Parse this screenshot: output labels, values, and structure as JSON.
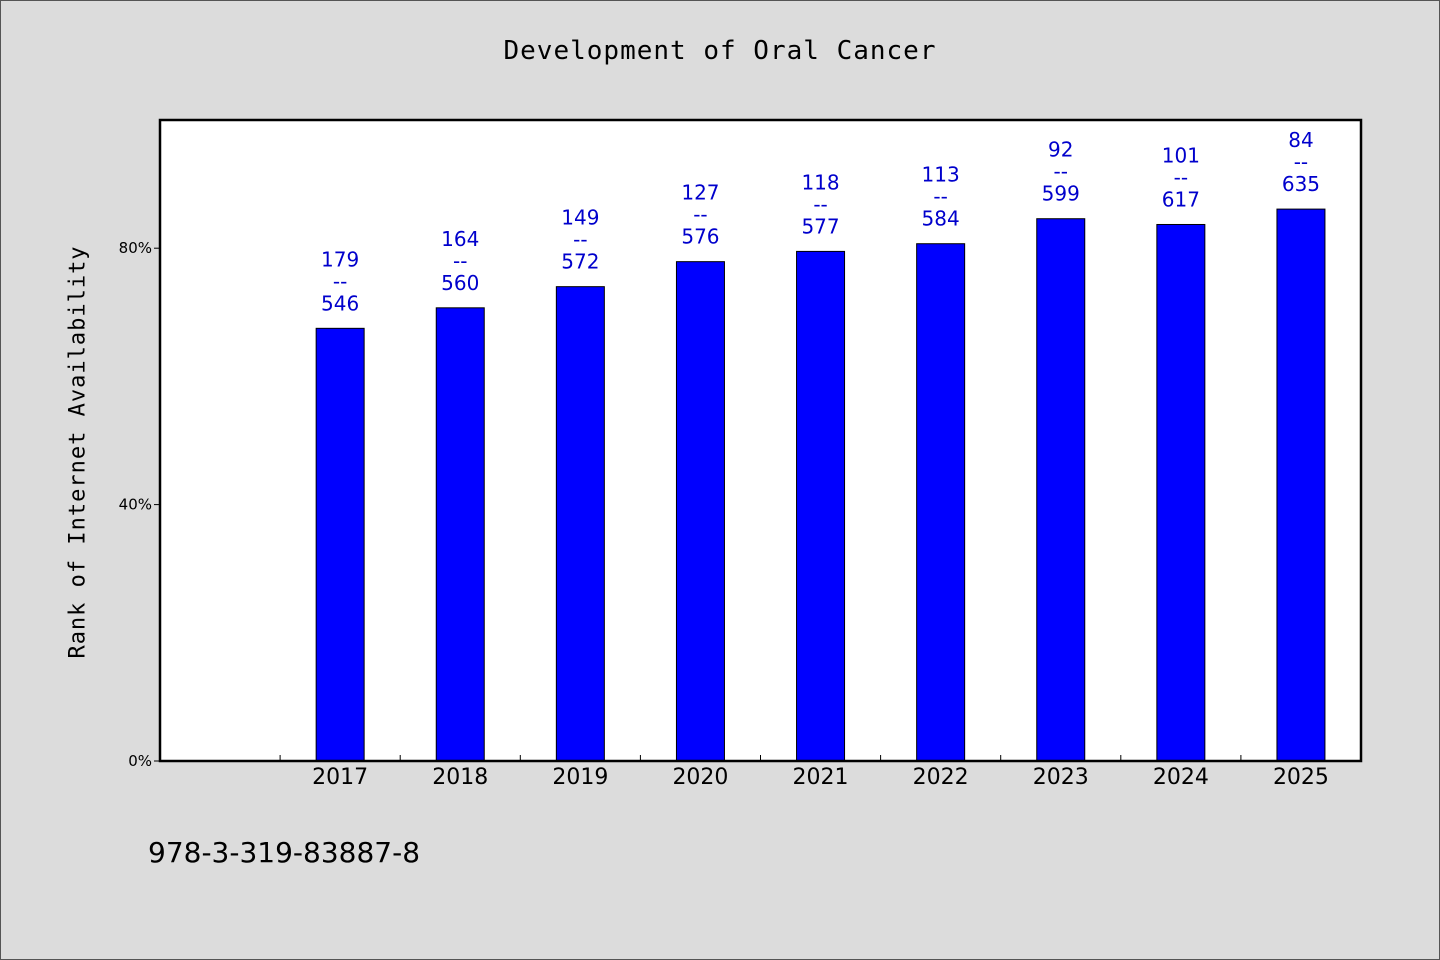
{
  "page": {
    "background": "#dcdcdc",
    "footer_code": "978-3-319-83887-8"
  },
  "chart_data": {
    "type": "bar",
    "title": "Development of Oral Cancer",
    "xlabel": "",
    "ylabel": "Rank of Internet Availability",
    "categories": [
      "2017",
      "2018",
      "2019",
      "2020",
      "2021",
      "2022",
      "2023",
      "2024",
      "2025"
    ],
    "values": [
      67.5,
      70.7,
      74.0,
      77.9,
      79.5,
      80.7,
      84.6,
      83.7,
      86.1
    ],
    "data_labels": [
      [
        "179",
        "--",
        "546"
      ],
      [
        "164",
        "--",
        "560"
      ],
      [
        "149",
        "--",
        "572"
      ],
      [
        "127",
        "--",
        "576"
      ],
      [
        "118",
        "--",
        "577"
      ],
      [
        "113",
        "--",
        "584"
      ],
      [
        "92",
        "--",
        "599"
      ],
      [
        "101",
        "--",
        "617"
      ],
      [
        "84",
        "--",
        "635"
      ]
    ],
    "ylim": [
      0,
      100
    ],
    "yticks": [
      0,
      40,
      80
    ],
    "ytick_labels": [
      "0%",
      "40%",
      "80%"
    ],
    "grid": false,
    "legend": "none",
    "colors": {
      "bar": "#0000ff",
      "bar_edge": "#000000",
      "label": "#0000cc",
      "plot_bg": "#ffffff"
    }
  }
}
